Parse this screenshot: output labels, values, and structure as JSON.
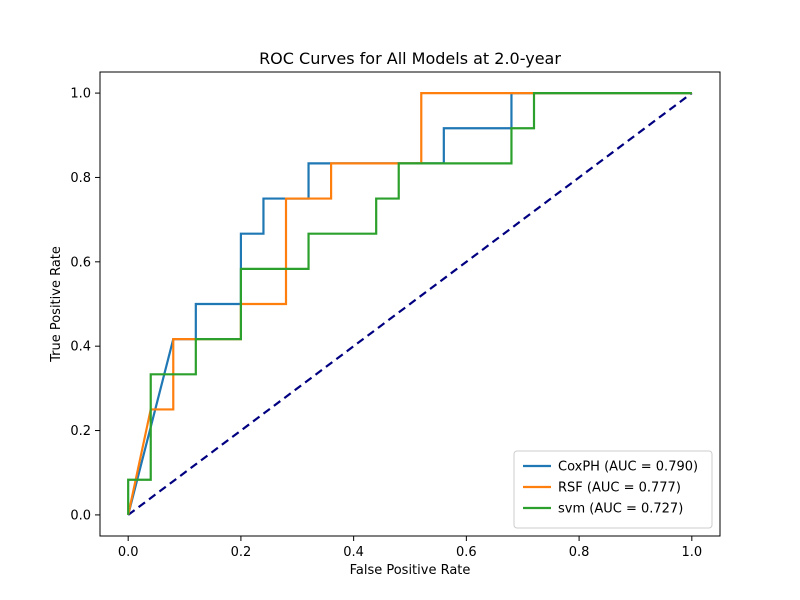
{
  "chart_data": {
    "type": "line",
    "title": "ROC Curves for All Models at 2.0-year",
    "xlabel": "False Positive Rate",
    "ylabel": "True Positive Rate",
    "xlim": [
      -0.05,
      1.05
    ],
    "ylim": [
      -0.05,
      1.05
    ],
    "xticks": [
      0.0,
      0.2,
      0.4,
      0.6,
      0.8,
      1.0
    ],
    "yticks": [
      0.0,
      0.2,
      0.4,
      0.6,
      0.8,
      1.0
    ],
    "xtick_labels": [
      "0.0",
      "0.2",
      "0.4",
      "0.6",
      "0.8",
      "1.0"
    ],
    "ytick_labels": [
      "0.0",
      "0.2",
      "0.4",
      "0.6",
      "0.8",
      "1.0"
    ],
    "legend_position": "lower-right",
    "series": [
      {
        "name": "CoxPH (AUC = 0.790)",
        "color": "#1f77b4",
        "x": [
          0.0,
          0.08,
          0.12,
          0.12,
          0.2,
          0.2,
          0.24,
          0.24,
          0.32,
          0.32,
          0.56,
          0.56,
          0.68,
          0.68,
          1.0
        ],
        "y": [
          0.0,
          0.4167,
          0.4167,
          0.5,
          0.5,
          0.6667,
          0.6667,
          0.75,
          0.75,
          0.8333,
          0.8333,
          0.9167,
          0.9167,
          1.0,
          1.0
        ]
      },
      {
        "name": "RSF (AUC = 0.777)",
        "color": "#ff7f0e",
        "x": [
          0.0,
          0.04,
          0.08,
          0.08,
          0.2,
          0.2,
          0.28,
          0.28,
          0.36,
          0.36,
          0.52,
          0.52,
          1.0
        ],
        "y": [
          0.0,
          0.25,
          0.25,
          0.4167,
          0.4167,
          0.5,
          0.5,
          0.75,
          0.75,
          0.8333,
          0.8333,
          1.0,
          1.0
        ]
      },
      {
        "name": "svm (AUC = 0.727)",
        "color": "#2ca02c",
        "x": [
          0.0,
          0.0,
          0.04,
          0.04,
          0.12,
          0.12,
          0.2,
          0.2,
          0.32,
          0.32,
          0.44,
          0.44,
          0.48,
          0.48,
          0.68,
          0.68,
          0.72,
          0.72,
          1.0
        ],
        "y": [
          0.0,
          0.0833,
          0.0833,
          0.3333,
          0.3333,
          0.4167,
          0.4167,
          0.5833,
          0.5833,
          0.6667,
          0.6667,
          0.75,
          0.75,
          0.8333,
          0.8333,
          0.9167,
          0.9167,
          1.0,
          1.0
        ]
      }
    ],
    "reference_line": {
      "x": [
        0.0,
        1.0
      ],
      "y": [
        0.0,
        1.0
      ],
      "color": "#000080",
      "style": "dashed"
    }
  }
}
